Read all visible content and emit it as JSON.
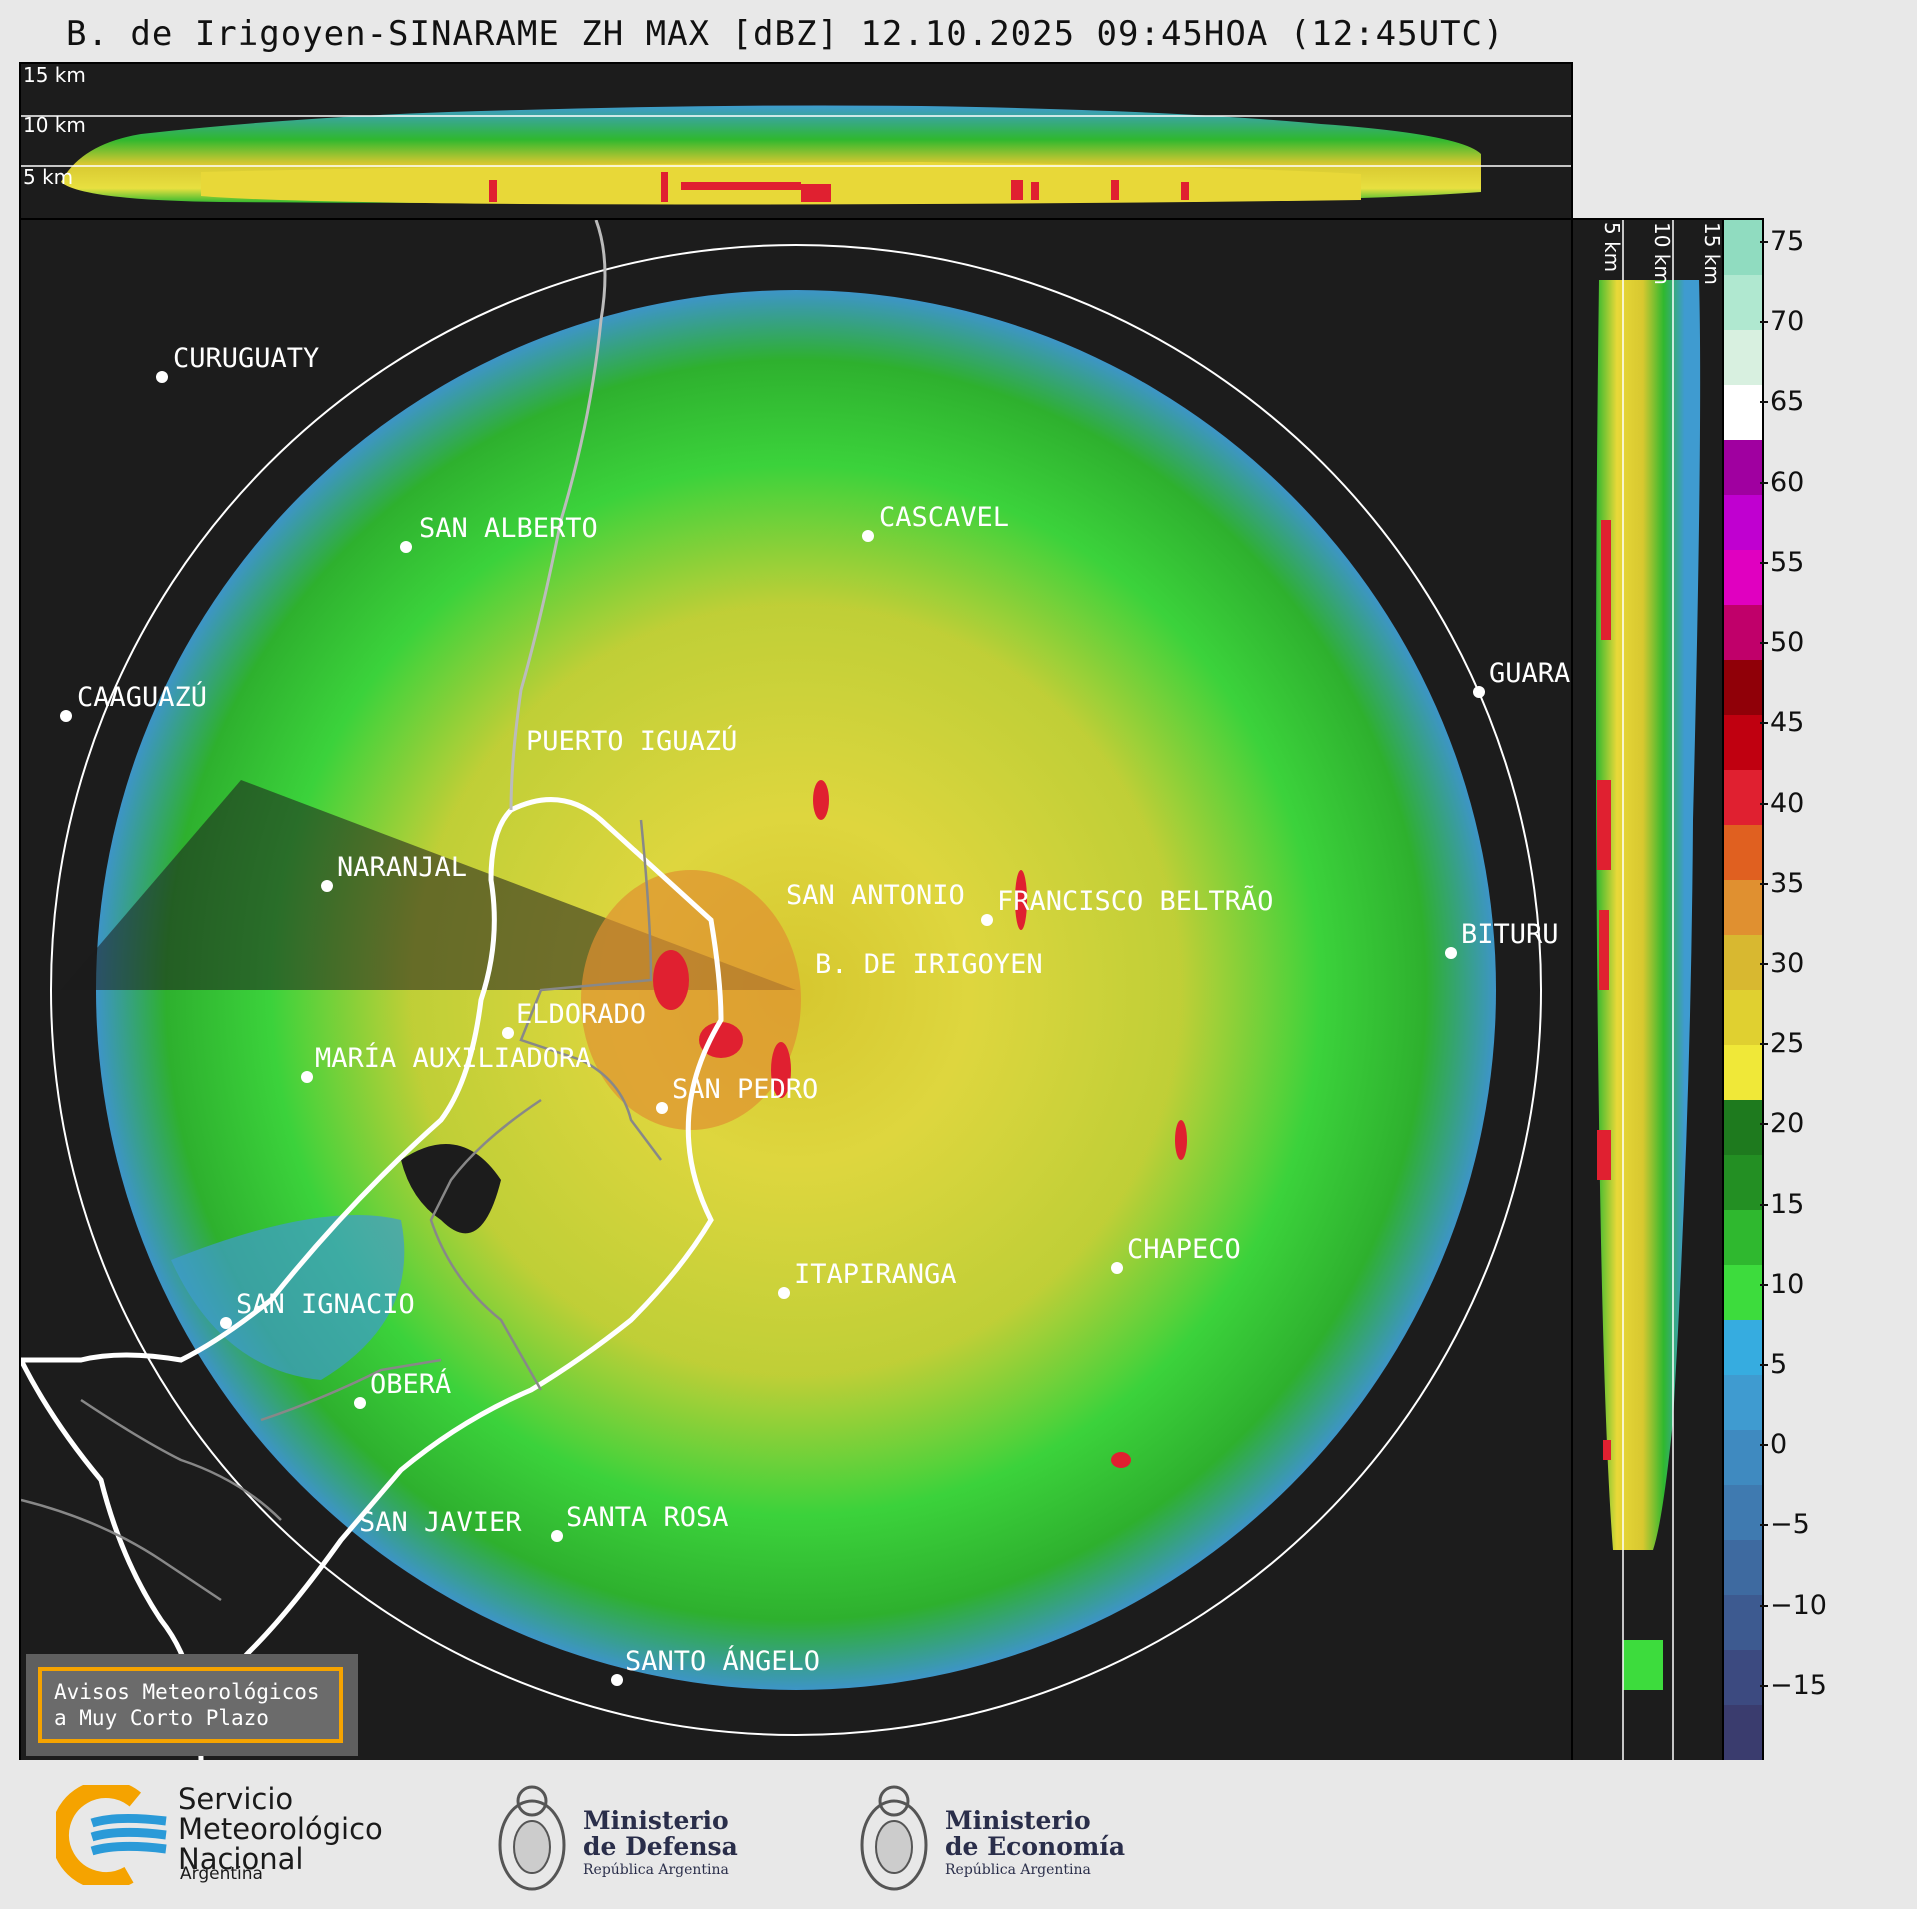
{
  "title": "B. de Irigoyen-SINARAME ZH MAX [dBZ] 12.10.2025 09:45HOA (12:45UTC)",
  "top_panel": {
    "labels": [
      "15 km",
      "10 km",
      "5 km"
    ]
  },
  "side_panel": {
    "labels": [
      "5 km",
      "10 km",
      "15 km"
    ]
  },
  "colorbar": {
    "ticks": [
      "75",
      "70",
      "65",
      "60",
      "55",
      "50",
      "45",
      "40",
      "35",
      "30",
      "25",
      "20",
      "15",
      "10",
      "5",
      "0",
      "−5",
      "−10",
      "−15"
    ],
    "colors": [
      "#3a3c6e",
      "#3c4a80",
      "#3d5a90",
      "#3e6aa0",
      "#3f7ab0",
      "#3f8ac0",
      "#3f9bd0",
      "#36ace0",
      "#3ddc3d",
      "#2fb82f",
      "#238f23",
      "#1e7a1e",
      "#f0e838",
      "#e0d030",
      "#d8b830",
      "#e09030",
      "#e06020",
      "#e02030",
      "#c00010",
      "#900008",
      "#c0006a",
      "#e000c0",
      "#c000d0",
      "#a000a0",
      "#ffffff",
      "#d8f0e0",
      "#b0e8d0",
      "#90dcc0"
    ]
  },
  "cities": [
    {
      "name": "CURUGUATY"
    },
    {
      "name": "SAN ALBERTO"
    },
    {
      "name": "CASCAVEL"
    },
    {
      "name": "CAAGUAZÚ"
    },
    {
      "name": "GUARA"
    },
    {
      "name": "PUERTO IGUAZÚ"
    },
    {
      "name": "NARANJAL"
    },
    {
      "name": "SAN ANTONIO"
    },
    {
      "name": "FRANCISCO BELTRÃO"
    },
    {
      "name": "BITURU"
    },
    {
      "name": "B. DE IRIGOYEN"
    },
    {
      "name": "ELDORADO"
    },
    {
      "name": "MARÍA AUXILIADORA"
    },
    {
      "name": "SAN PEDRO"
    },
    {
      "name": "ITAPIRANGA"
    },
    {
      "name": "CHAPECO"
    },
    {
      "name": "SAN IGNACIO"
    },
    {
      "name": "OBERÁ"
    },
    {
      "name": "SAN JAVIER"
    },
    {
      "name": "SANTA ROSA"
    },
    {
      "name": "SANTO ÁNGELO"
    }
  ],
  "notice": {
    "line1": "Avisos Meteorológicos",
    "line2": "a Muy Corto Plazo"
  },
  "footer": {
    "smn_line1": "Servicio",
    "smn_line2": "Meteorológico",
    "smn_line3": "Nacional",
    "smn_sub": "Argentina",
    "defensa_line1": "Ministerio",
    "defensa_line2": "de Defensa",
    "defensa_sub": "República Argentina",
    "economia_line1": "Ministerio",
    "economia_line2": "de Economía",
    "economia_sub": "República Argentina"
  }
}
